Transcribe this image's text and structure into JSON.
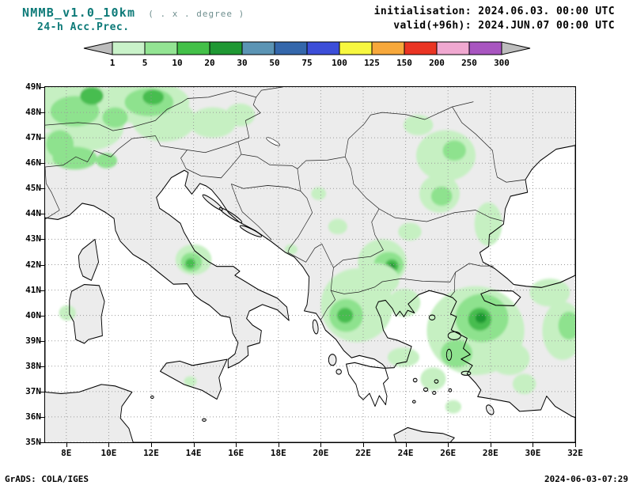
{
  "header": {
    "model": "NMMB_v1.0_10km",
    "resolution_note": "( . x . degree )",
    "product": "24-h Acc.Prec.",
    "init": "initialisation: 2024.06.03.  00:00 UTC",
    "valid": "valid(+96h): 2024.JUN.07 00:00 UTC"
  },
  "colorbar": {
    "labels": [
      "1",
      "5",
      "10",
      "20",
      "30",
      "50",
      "75",
      "100",
      "125",
      "150",
      "200",
      "250",
      "300"
    ],
    "segment_colors": [
      "#c9f2c9",
      "#93e493",
      "#43c048",
      "#1f9833",
      "#5b94b4",
      "#3467ab",
      "#3c4ed8",
      "#f7f73f",
      "#f7a83b",
      "#ea3423",
      "#f0a8d0",
      "#a855c0"
    ],
    "arrow_left_color": "#bdbdbd",
    "arrow_right_color": "#bdbdbd"
  },
  "axes": {
    "lat_labels": [
      "49N",
      "48N",
      "47N",
      "46N",
      "45N",
      "44N",
      "43N",
      "42N",
      "41N",
      "40N",
      "39N",
      "38N",
      "37N",
      "36N",
      "35N"
    ],
    "lon_labels": [
      "8E",
      "10E",
      "12E",
      "14E",
      "16E",
      "18E",
      "20E",
      "22E",
      "24E",
      "26E",
      "28E",
      "30E",
      "32E"
    ]
  },
  "map": {
    "lon_min": 7,
    "lon_max": 32,
    "lat_min": 35,
    "lat_max": 49,
    "land_color": "#ececec",
    "sea_color": "#ffffff",
    "precip_levels": {
      "l1": "#c6f0c2",
      "l2": "#8ee28e",
      "l3": "#46bd4f",
      "l4": "#1f9833"
    },
    "precip_blobs": [
      {
        "lon": 8.3,
        "lat": 48.2,
        "rx": 2.3,
        "ry": 1.0,
        "level": 1
      },
      {
        "lon": 11.6,
        "lat": 48.4,
        "rx": 2.2,
        "ry": 0.85,
        "level": 1
      },
      {
        "lon": 9.0,
        "lat": 47.4,
        "rx": 1.7,
        "ry": 0.9,
        "level": 1
      },
      {
        "lon": 12.6,
        "lat": 47.7,
        "rx": 1.5,
        "ry": 0.85,
        "level": 1
      },
      {
        "lon": 14.9,
        "lat": 47.6,
        "rx": 1.1,
        "ry": 0.6,
        "level": 1
      },
      {
        "lon": 16.2,
        "lat": 47.9,
        "rx": 0.7,
        "ry": 0.45,
        "level": 1
      },
      {
        "lon": 7.5,
        "lat": 46.6,
        "rx": 0.8,
        "ry": 0.7,
        "level": 1
      },
      {
        "lon": 8.4,
        "lat": 48.05,
        "rx": 1.15,
        "ry": 0.6,
        "level": 2
      },
      {
        "lon": 11.9,
        "lat": 48.4,
        "rx": 1.15,
        "ry": 0.55,
        "level": 2
      },
      {
        "lon": 7.7,
        "lat": 46.75,
        "rx": 0.65,
        "ry": 0.55,
        "level": 2
      },
      {
        "lon": 8.4,
        "lat": 46.2,
        "rx": 1.05,
        "ry": 0.45,
        "level": 2
      },
      {
        "lon": 9.9,
        "lat": 46.1,
        "rx": 0.5,
        "ry": 0.3,
        "level": 2
      },
      {
        "lon": 10.3,
        "lat": 47.8,
        "rx": 0.6,
        "ry": 0.4,
        "level": 2
      },
      {
        "lon": 9.2,
        "lat": 48.65,
        "rx": 0.55,
        "ry": 0.35,
        "level": 3
      },
      {
        "lon": 12.1,
        "lat": 48.6,
        "rx": 0.5,
        "ry": 0.3,
        "level": 3
      },
      {
        "lon": 14.0,
        "lat": 42.2,
        "rx": 0.85,
        "ry": 0.6,
        "level": 1
      },
      {
        "lon": 13.9,
        "lat": 42.1,
        "rx": 0.5,
        "ry": 0.38,
        "level": 2
      },
      {
        "lon": 13.85,
        "lat": 42.05,
        "rx": 0.24,
        "ry": 0.2,
        "level": 3
      },
      {
        "lon": 13.85,
        "lat": 37.4,
        "rx": 0.3,
        "ry": 0.2,
        "level": 1
      },
      {
        "lon": 8.05,
        "lat": 40.1,
        "rx": 0.4,
        "ry": 0.3,
        "level": 1
      },
      {
        "lon": 18.6,
        "lat": 42.6,
        "rx": 0.3,
        "ry": 0.2,
        "level": 1
      },
      {
        "lon": 24.6,
        "lat": 47.5,
        "rx": 0.7,
        "ry": 0.4,
        "level": 1
      },
      {
        "lon": 25.9,
        "lat": 46.3,
        "rx": 1.4,
        "ry": 1.0,
        "level": 1
      },
      {
        "lon": 26.3,
        "lat": 46.5,
        "rx": 0.55,
        "ry": 0.4,
        "level": 2
      },
      {
        "lon": 25.6,
        "lat": 44.8,
        "rx": 0.95,
        "ry": 0.75,
        "level": 1
      },
      {
        "lon": 25.7,
        "lat": 44.7,
        "rx": 0.5,
        "ry": 0.38,
        "level": 2
      },
      {
        "lon": 27.9,
        "lat": 43.6,
        "rx": 0.65,
        "ry": 0.85,
        "level": 1
      },
      {
        "lon": 24.2,
        "lat": 43.3,
        "rx": 0.55,
        "ry": 0.35,
        "level": 1
      },
      {
        "lon": 20.8,
        "lat": 43.5,
        "rx": 0.45,
        "ry": 0.3,
        "level": 1
      },
      {
        "lon": 19.9,
        "lat": 44.8,
        "rx": 0.35,
        "ry": 0.25,
        "level": 1
      },
      {
        "lon": 22.9,
        "lat": 42.1,
        "rx": 1.15,
        "ry": 0.9,
        "level": 1
      },
      {
        "lon": 23.2,
        "lat": 42.0,
        "rx": 0.7,
        "ry": 0.5,
        "level": 2
      },
      {
        "lon": 23.35,
        "lat": 41.95,
        "rx": 0.32,
        "ry": 0.26,
        "level": 3
      },
      {
        "lon": 23.35,
        "lat": 41.93,
        "rx": 0.16,
        "ry": 0.13,
        "level": 4
      },
      {
        "lon": 21.7,
        "lat": 40.4,
        "rx": 1.7,
        "ry": 1.45,
        "level": 1
      },
      {
        "lon": 22.6,
        "lat": 41.4,
        "rx": 1.1,
        "ry": 0.65,
        "level": 1
      },
      {
        "lon": 21.2,
        "lat": 40.0,
        "rx": 0.8,
        "ry": 0.65,
        "level": 2
      },
      {
        "lon": 21.15,
        "lat": 40.0,
        "rx": 0.38,
        "ry": 0.3,
        "level": 3
      },
      {
        "lon": 23.95,
        "lat": 40.5,
        "rx": 0.75,
        "ry": 0.55,
        "level": 1
      },
      {
        "lon": 23.9,
        "lat": 38.35,
        "rx": 0.75,
        "ry": 0.38,
        "level": 1
      },
      {
        "lon": 27.3,
        "lat": 39.4,
        "rx": 2.3,
        "ry": 1.75,
        "level": 1
      },
      {
        "lon": 27.6,
        "lat": 39.9,
        "rx": 1.25,
        "ry": 0.95,
        "level": 2
      },
      {
        "lon": 27.5,
        "lat": 39.85,
        "rx": 0.55,
        "ry": 0.45,
        "level": 3
      },
      {
        "lon": 27.55,
        "lat": 39.9,
        "rx": 0.26,
        "ry": 0.2,
        "level": 4
      },
      {
        "lon": 26.4,
        "lat": 38.5,
        "rx": 0.75,
        "ry": 0.55,
        "level": 2
      },
      {
        "lon": 28.9,
        "lat": 38.3,
        "rx": 0.95,
        "ry": 0.65,
        "level": 1
      },
      {
        "lon": 25.3,
        "lat": 37.5,
        "rx": 0.6,
        "ry": 0.45,
        "level": 1
      },
      {
        "lon": 26.25,
        "lat": 36.4,
        "rx": 0.38,
        "ry": 0.26,
        "level": 1
      },
      {
        "lon": 30.8,
        "lat": 40.9,
        "rx": 0.95,
        "ry": 0.55,
        "level": 1
      },
      {
        "lon": 31.4,
        "lat": 39.4,
        "rx": 0.95,
        "ry": 1.15,
        "level": 1
      },
      {
        "lon": 31.7,
        "lat": 39.6,
        "rx": 0.5,
        "ry": 0.55,
        "level": 2
      },
      {
        "lon": 29.6,
        "lat": 37.3,
        "rx": 0.55,
        "ry": 0.4,
        "level": 1
      }
    ]
  },
  "footer": {
    "left": "GrADS: COLA/IGES",
    "right": "2024-06-03-07:29"
  }
}
